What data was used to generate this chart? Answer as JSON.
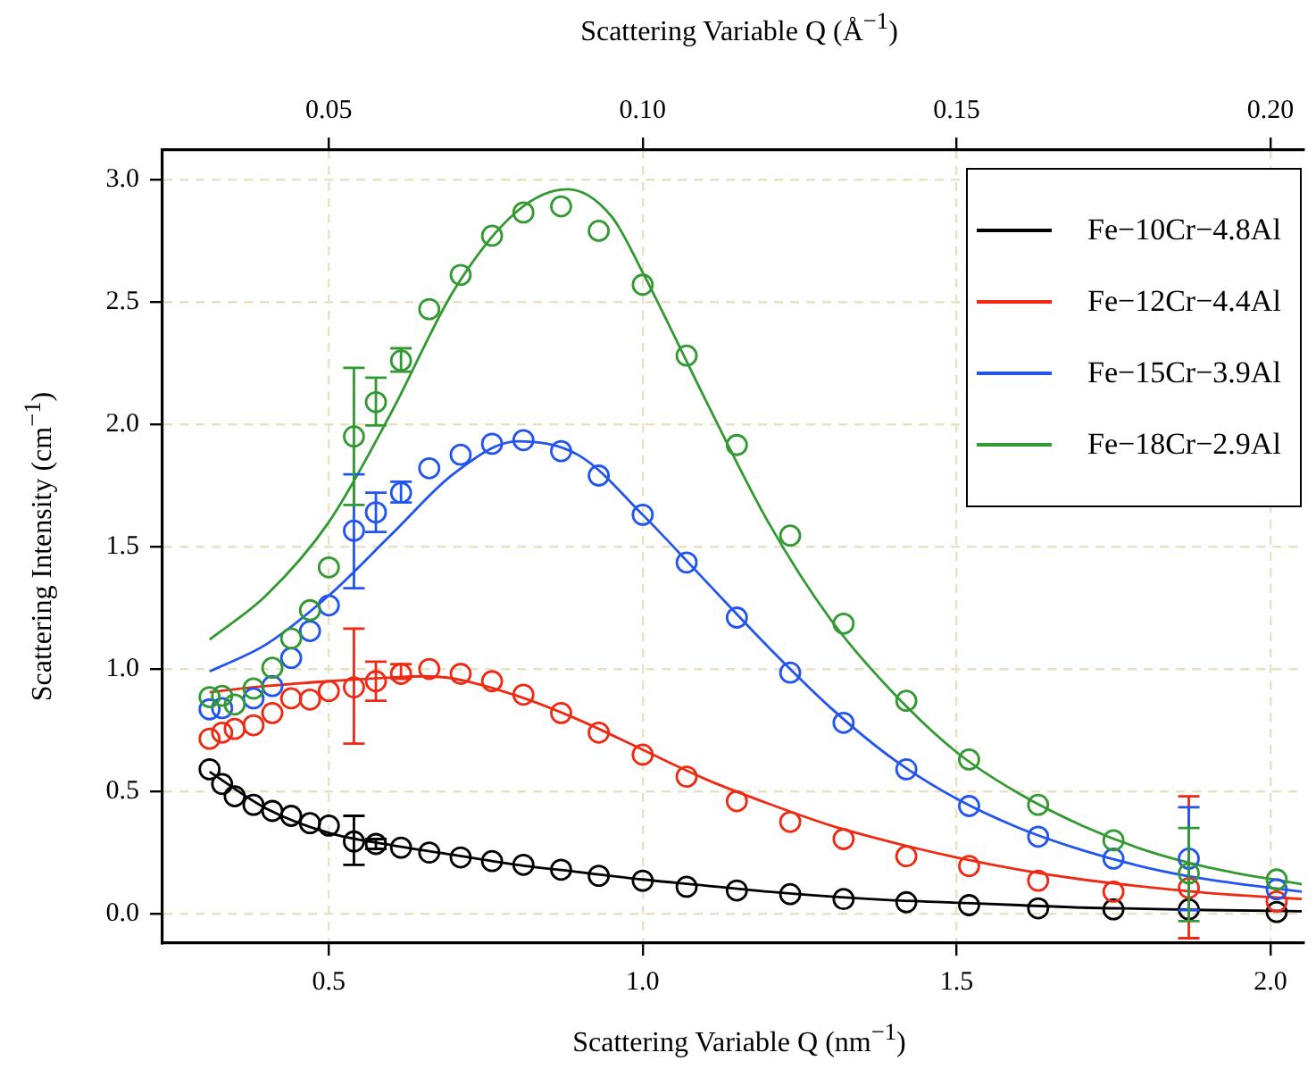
{
  "chart_data": {
    "type": "scatter",
    "xlabel": "Scattering Variable Q (nm$^{−1}$)",
    "x2label": "Scattering Variable Q (Å$^{−1}$)",
    "ylabel": "Scattering Intensity (cm$^{−1}$)",
    "xlim": [
      0.235,
      2.053
    ],
    "xticks": [
      {
        "value": 0.5,
        "label": "0.5"
      },
      {
        "value": 1,
        "label": "1.0"
      },
      {
        "value": 1.5,
        "label": "1.5"
      },
      {
        "value": 2,
        "label": "2.0"
      }
    ],
    "x2lim": [
      0.0235,
      0.2053
    ],
    "x2ticks": [
      0.05,
      {
        "value": 0.1,
        "label": "0.10"
      },
      0.15,
      {
        "value": 0.2,
        "label": "0.20"
      }
    ],
    "ylim": [
      -0.12,
      3.12
    ],
    "yticks": [
      {
        "value": 0,
        "label": "0.0"
      },
      {
        "value": 0.5,
        "label": "0.5"
      },
      {
        "value": 1,
        "label": "1.0"
      },
      {
        "value": 1.5,
        "label": "1.5"
      },
      {
        "value": 2,
        "label": "2.0"
      },
      {
        "value": 2.5,
        "label": "2.5"
      },
      {
        "value": 3,
        "label": "3.0"
      }
    ],
    "grid": true,
    "legend": "top right",
    "marker": "circle",
    "x": [
      0.31,
      0.33,
      0.35,
      0.38,
      0.41,
      0.44,
      0.47,
      0.5,
      0.54,
      0.575,
      0.615,
      0.66,
      0.71,
      0.76,
      0.81,
      0.87,
      0.93,
      1.0,
      1.07,
      1.15,
      1.235,
      1.32,
      1.42,
      1.52,
      1.63,
      1.75,
      1.87,
      2.01
    ],
    "series": [
      {
        "type": "line",
        "marker": "none",
        "name": "Fe−10Cr−4.8Al",
        "color": "#000000",
        "x": [
          0.31,
          0.4,
          0.5,
          0.6,
          0.7,
          0.8,
          0.9,
          1.0,
          1.1,
          1.2,
          1.3,
          1.4,
          1.5,
          1.6,
          1.7,
          1.8,
          1.9,
          2.05
        ],
        "values": [
          0.58,
          0.43,
          0.33,
          0.28,
          0.24,
          0.2,
          0.17,
          0.14,
          0.115,
          0.09,
          0.07,
          0.055,
          0.045,
          0.035,
          0.025,
          0.02,
          0.015,
          0.01
        ]
      },
      {
        "type": "line",
        "marker": "none",
        "name": "Fe−12Cr−4.4Al",
        "color": "#ee2a14",
        "x": [
          0.31,
          0.4,
          0.5,
          0.6,
          0.65,
          0.7,
          0.8,
          0.9,
          1.0,
          1.1,
          1.2,
          1.3,
          1.4,
          1.5,
          1.6,
          1.7,
          1.8,
          1.9,
          2.05
        ],
        "values": [
          0.905,
          0.93,
          0.95,
          0.965,
          0.97,
          0.96,
          0.89,
          0.79,
          0.67,
          0.55,
          0.45,
          0.36,
          0.29,
          0.23,
          0.18,
          0.14,
          0.11,
          0.085,
          0.06
        ]
      },
      {
        "type": "line",
        "marker": "none",
        "name": "Fe−15Cr−3.9Al",
        "color": "#2255ee",
        "x": [
          0.31,
          0.4,
          0.5,
          0.6,
          0.7,
          0.8,
          0.9,
          1.0,
          1.1,
          1.2,
          1.3,
          1.4,
          1.5,
          1.6,
          1.7,
          1.8,
          1.9,
          2.05
        ],
        "values": [
          0.99,
          1.1,
          1.3,
          1.55,
          1.8,
          1.93,
          1.87,
          1.63,
          1.36,
          1.09,
          0.84,
          0.63,
          0.47,
          0.35,
          0.26,
          0.19,
          0.14,
          0.09
        ]
      },
      {
        "type": "line",
        "marker": "none",
        "name": "Fe−18Cr−2.9Al",
        "color": "#339933",
        "x": [
          0.31,
          0.4,
          0.5,
          0.6,
          0.7,
          0.8,
          0.88,
          0.95,
          1.0,
          1.1,
          1.2,
          1.3,
          1.4,
          1.5,
          1.6,
          1.7,
          1.8,
          1.9,
          2.05
        ],
        "values": [
          1.12,
          1.3,
          1.6,
          2.05,
          2.55,
          2.87,
          2.96,
          2.85,
          2.62,
          2.1,
          1.6,
          1.2,
          0.9,
          0.66,
          0.49,
          0.36,
          0.26,
          0.19,
          0.12
        ]
      },
      {
        "color": "#000000",
        "values": [
          0.59,
          0.53,
          0.48,
          0.445,
          0.42,
          0.4,
          0.37,
          0.36,
          0.295,
          0.285,
          0.27,
          0.25,
          0.23,
          0.215,
          0.2,
          0.18,
          0.155,
          0.135,
          0.11,
          0.095,
          0.08,
          0.06,
          0.047,
          0.035,
          0.022,
          0.018,
          0.018,
          0.007
        ],
        "errors": [
          null,
          null,
          null,
          null,
          null,
          null,
          null,
          null,
          [
            0.2,
            0.4
          ],
          0.02,
          null,
          null,
          null,
          null,
          null,
          null,
          null,
          null,
          null,
          null,
          null,
          null,
          null,
          null,
          null,
          null,
          null,
          null
        ]
      },
      {
        "color": "#ee2a14",
        "values": [
          0.715,
          0.74,
          0.755,
          0.77,
          0.82,
          0.88,
          0.875,
          0.91,
          0.925,
          0.95,
          0.98,
          1.0,
          0.98,
          0.95,
          0.895,
          0.82,
          0.74,
          0.65,
          0.56,
          0.46,
          0.375,
          0.305,
          0.235,
          0.195,
          0.135,
          0.09,
          0.105,
          0.05
        ],
        "errors": [
          null,
          null,
          null,
          null,
          null,
          null,
          null,
          null,
          [
            0.695,
            1.165
          ],
          [
            0.87,
            1.03
          ],
          [
            0.96,
            1.02
          ],
          null,
          null,
          null,
          null,
          null,
          null,
          null,
          null,
          null,
          null,
          null,
          null,
          null,
          null,
          null,
          [
            -0.1,
            0.48
          ],
          null
        ]
      },
      {
        "color": "#2255ee",
        "values": [
          0.835,
          0.84,
          null,
          0.88,
          0.93,
          1.045,
          1.155,
          1.26,
          1.565,
          1.64,
          1.72,
          1.82,
          1.875,
          1.92,
          1.935,
          1.89,
          1.79,
          1.63,
          1.435,
          1.21,
          0.985,
          0.78,
          0.59,
          0.44,
          0.315,
          0.225,
          0.225,
          0.1
        ],
        "errors": [
          null,
          null,
          null,
          null,
          null,
          null,
          null,
          null,
          [
            1.33,
            1.795
          ],
          [
            1.56,
            1.72
          ],
          [
            1.68,
            1.765
          ],
          null,
          null,
          null,
          null,
          null,
          null,
          null,
          null,
          null,
          null,
          null,
          null,
          null,
          null,
          null,
          [
            0.015,
            0.435
          ],
          null
        ]
      },
      {
        "color": "#339933",
        "values": [
          0.885,
          0.89,
          0.855,
          0.92,
          1.005,
          1.125,
          1.24,
          1.415,
          1.95,
          2.09,
          2.26,
          2.47,
          2.61,
          2.77,
          2.865,
          2.89,
          2.79,
          2.57,
          2.28,
          1.915,
          1.545,
          1.185,
          0.87,
          0.63,
          0.445,
          0.3,
          0.165,
          0.14
        ],
        "errors": [
          null,
          null,
          null,
          null,
          null,
          null,
          null,
          null,
          [
            1.67,
            2.23
          ],
          [
            1.995,
            2.19
          ],
          [
            2.215,
            2.31
          ],
          null,
          null,
          null,
          null,
          null,
          null,
          null,
          null,
          null,
          null,
          null,
          null,
          null,
          null,
          null,
          [
            -0.03,
            0.35
          ],
          null
        ]
      }
    ]
  }
}
